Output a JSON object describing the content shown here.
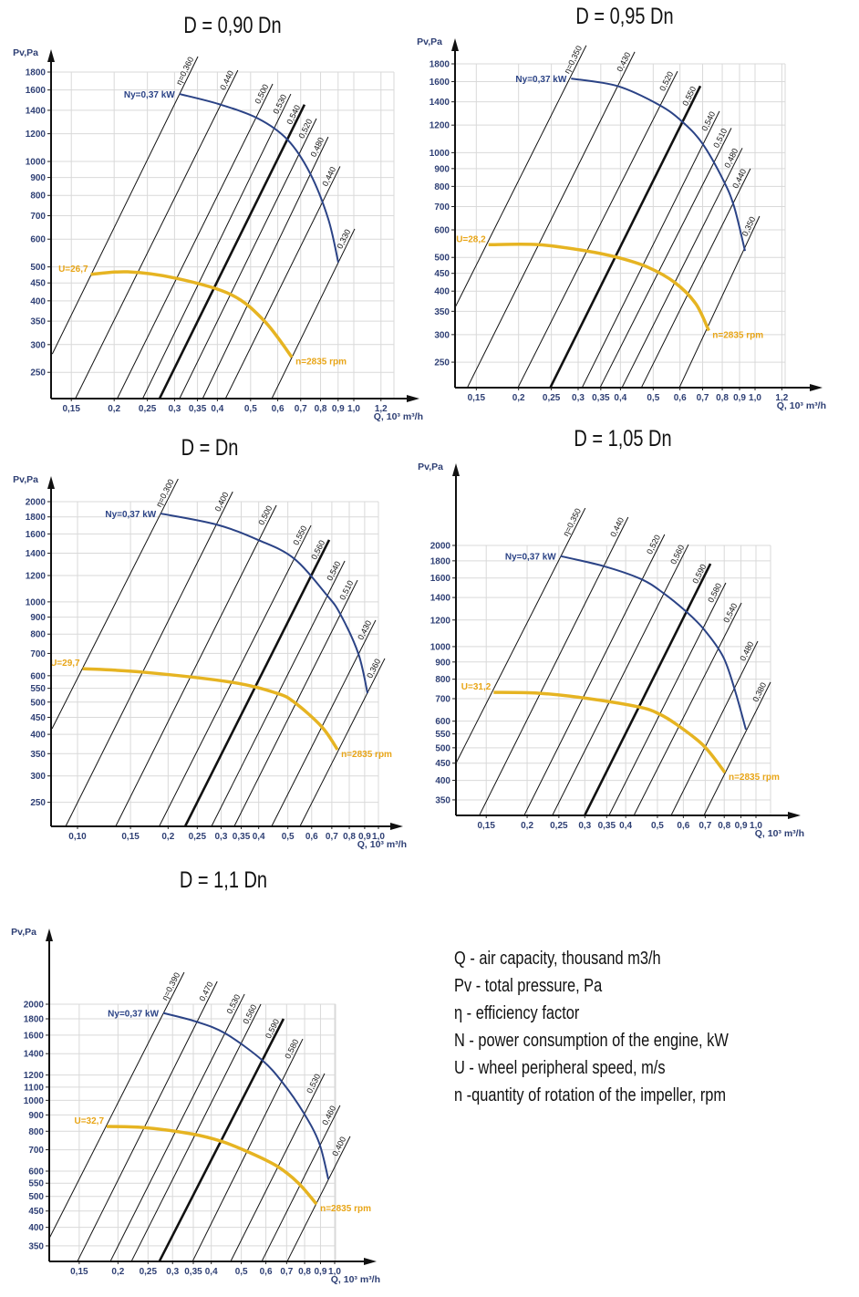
{
  "colors": {
    "power_curve": "#2b4386",
    "speed_curve": "#e6b422",
    "speed_label": "#e8a517",
    "axis_text": "#2e3f74",
    "grid": "#d9d9d9",
    "lines": "#111111"
  },
  "axes_scale": {
    "x": "log",
    "y": "log"
  },
  "chart_data": [
    {
      "type": "line",
      "title": "D = 0,90 Dn",
      "xlabel": "Q, 10³ m³/h",
      "ylabel": "Pv,Pa",
      "grid": true,
      "x_ticks": [
        "0,15",
        "0,2",
        "0,25",
        "0,3",
        "0,35",
        "0,4",
        "0,5",
        "0,6",
        "0,7",
        "0,8",
        "0,9",
        "1,0",
        "1,2"
      ],
      "y_ticks": [
        "1800",
        "1600",
        "1400",
        "1200",
        "1000",
        "900",
        "800",
        "700",
        "600",
        "500",
        "450",
        "400",
        "350",
        "300",
        "250"
      ],
      "efficiency_lines": [
        {
          "label": "η=0,360",
          "start": [
            0.132,
            282
          ],
          "end": [
            0.351,
            1993
          ]
        },
        {
          "label": "0,440",
          "start": [
            0.154,
            210
          ],
          "end": [
            0.459,
            1822
          ]
        },
        {
          "label": "0,500",
          "start": [
            0.204,
            210
          ],
          "end": [
            0.58,
            1665
          ]
        },
        {
          "label": "0,530",
          "start": [
            0.242,
            210
          ],
          "end": [
            0.655,
            1558
          ]
        },
        {
          "label": "0,540",
          "start": [
            0.271,
            210
          ],
          "end": [
            0.718,
            1453
          ],
          "highlight": true
        },
        {
          "label": "0,520",
          "start": [
            0.31,
            210
          ],
          "end": [
            0.778,
            1326
          ]
        },
        {
          "label": "0,480",
          "start": [
            0.362,
            210
          ],
          "end": [
            0.842,
            1175
          ]
        },
        {
          "label": "0,440",
          "start": [
            0.422,
            210
          ],
          "end": [
            0.912,
            968
          ]
        },
        {
          "label": "0,330",
          "start": [
            0.576,
            210
          ],
          "end": [
            1.006,
            642
          ]
        }
      ],
      "power_curve": {
        "label": "Ny=0,37 kW",
        "points": [
          [
            0.31,
            1558
          ],
          [
            0.404,
            1458
          ],
          [
            0.526,
            1326
          ],
          [
            0.64,
            1155
          ],
          [
            0.745,
            926
          ],
          [
            0.842,
            686
          ],
          [
            0.901,
            515
          ]
        ]
      },
      "speed_curve": {
        "label_start": "U=26,7",
        "label_end": "n=2835 rpm",
        "points": [
          [
            0.171,
            476
          ],
          [
            0.219,
            484
          ],
          [
            0.303,
            464
          ],
          [
            0.438,
            417
          ],
          [
            0.549,
            350
          ],
          [
            0.66,
            276
          ]
        ]
      }
    },
    {
      "type": "line",
      "title": "D = 0,95 Dn",
      "xlabel": "Q, 10³ m³/h",
      "ylabel": "Pv,Pa",
      "grid": true,
      "x_ticks": [
        "0,15",
        "0,2",
        "0,25",
        "0,3",
        "0,35",
        "0,4",
        "0,5",
        "0,6",
        "0,7",
        "0,8",
        "0,9",
        "1,0",
        "1,2"
      ],
      "y_ticks": [
        "1800",
        "1600",
        "1400",
        "1200",
        "1000",
        "900",
        "800",
        "700",
        "600",
        "500",
        "450",
        "400",
        "350",
        "300",
        "250"
      ],
      "efficiency_lines": [
        {
          "label": "η=0,350",
          "start": [
            0.13,
            360
          ],
          "end": [
            0.317,
            2033
          ]
        },
        {
          "label": "0,430",
          "start": [
            0.141,
            211
          ],
          "end": [
            0.441,
            1948
          ]
        },
        {
          "label": "0,520",
          "start": [
            0.199,
            211
          ],
          "end": [
            0.59,
            1714
          ]
        },
        {
          "label": "0,550",
          "start": [
            0.248,
            211
          ],
          "end": [
            0.689,
            1554
          ],
          "highlight": true
        },
        {
          "label": "0,540",
          "start": [
            0.308,
            211
          ],
          "end": [
            0.785,
            1316
          ]
        },
        {
          "label": "0,510",
          "start": [
            0.348,
            211
          ],
          "end": [
            0.851,
            1177
          ]
        },
        {
          "label": "0,480",
          "start": [
            0.404,
            211
          ],
          "end": [
            0.917,
            1031
          ]
        },
        {
          "label": "0,440",
          "start": [
            0.461,
            211
          ],
          "end": [
            0.969,
            900
          ]
        },
        {
          "label": "0,350",
          "start": [
            0.597,
            211
          ],
          "end": [
            1.031,
            657
          ]
        }
      ],
      "power_curve": {
        "label": "Ny=0,37 kW",
        "points": [
          [
            0.286,
            1633
          ],
          [
            0.392,
            1554
          ],
          [
            0.521,
            1371
          ],
          [
            0.608,
            1230
          ],
          [
            0.698,
            1064
          ],
          [
            0.805,
            835
          ],
          [
            0.867,
            700
          ],
          [
            0.934,
            522
          ]
        ]
      },
      "speed_curve": {
        "label_start": "U=28,2",
        "label_end": "n=2835 rpm",
        "points": [
          [
            0.163,
            544
          ],
          [
            0.229,
            544
          ],
          [
            0.317,
            522
          ],
          [
            0.392,
            500
          ],
          [
            0.481,
            469
          ],
          [
            0.58,
            423
          ],
          [
            0.668,
            368
          ],
          [
            0.73,
            308
          ]
        ]
      }
    },
    {
      "type": "line",
      "title": "D = Dn",
      "xlabel": "Q, 10³ m³/h",
      "ylabel": "Pv,Pa",
      "grid": true,
      "x_ticks": [
        "0,10",
        "0,15",
        "0,2",
        "0,25",
        "0,3",
        "0,35",
        "0,4",
        "0,5",
        "0,6",
        "0,7",
        "0,8",
        "0,9",
        "1,0"
      ],
      "y_ticks": [
        "2000",
        "1800",
        "1600",
        "1400",
        "1200",
        "1000",
        "900",
        "800",
        "700",
        "600",
        "550",
        "500",
        "450",
        "400",
        "350",
        "300",
        "250"
      ],
      "efficiency_lines": [
        {
          "label": "η=0,300",
          "start": [
            0.0823,
            416
          ],
          "end": [
            0.216,
            2341
          ]
        },
        {
          "label": "0,400",
          "start": [
            0.0914,
            212
          ],
          "end": [
            0.328,
            2142
          ]
        },
        {
          "label": "0,500",
          "start": [
            0.134,
            212
          ],
          "end": [
            0.458,
            1950
          ]
        },
        {
          "label": "0,550",
          "start": [
            0.187,
            212
          ],
          "end": [
            0.597,
            1697
          ]
        },
        {
          "label": "0,560",
          "start": [
            0.228,
            212
          ],
          "end": [
            0.686,
            1535
          ],
          "highlight": true
        },
        {
          "label": "0,540",
          "start": [
            0.279,
            212
          ],
          "end": [
            0.773,
            1327
          ]
        },
        {
          "label": "0,510",
          "start": [
            0.332,
            212
          ],
          "end": [
            0.852,
            1162
          ]
        },
        {
          "label": "0,430",
          "start": [
            0.442,
            212
          ],
          "end": [
            0.979,
            881
          ]
        },
        {
          "label": "0,360",
          "start": [
            0.549,
            212
          ],
          "end": [
            1.05,
            676
          ]
        }
      ],
      "power_curve": {
        "label": "Ny=0,37 kW",
        "points": [
          [
            0.189,
            1842
          ],
          [
            0.289,
            1708
          ],
          [
            0.398,
            1535
          ],
          [
            0.523,
            1352
          ],
          [
            0.672,
            1051
          ],
          [
            0.746,
            921
          ],
          [
            0.858,
            698
          ],
          [
            0.92,
            532
          ]
        ]
      },
      "speed_curve": {
        "label_start": "U=29,7",
        "label_end": "n=2835 rpm",
        "points": [
          [
            0.104,
            630
          ],
          [
            0.165,
            615
          ],
          [
            0.323,
            574
          ],
          [
            0.458,
            532
          ],
          [
            0.526,
            499
          ],
          [
            0.649,
            421
          ],
          [
            0.731,
            360
          ]
        ]
      }
    },
    {
      "type": "line",
      "title": "D = 1,05 Dn",
      "xlabel": "Q, 10³ m³/h",
      "ylabel": "Pv,Pa",
      "grid": true,
      "x_ticks": [
        "0,15",
        "0,2",
        "0,25",
        "0,3",
        "0,35",
        "0,4",
        "0,5",
        "0,6",
        "0,7",
        "0,8",
        "0,9",
        "1,0"
      ],
      "y_ticks": [
        "2000",
        "1800",
        "1600",
        "1400",
        "1200",
        "1000",
        "900",
        "800",
        "700",
        "600",
        "550",
        "500",
        "450",
        "400",
        "350"
      ],
      "efficiency_lines": [
        {
          "label": "η=0,350",
          "start": [
            0.12,
            441
          ],
          "end": [
            0.301,
            2583
          ]
        },
        {
          "label": "0,440",
          "start": [
            0.143,
            315
          ],
          "end": [
            0.407,
            2427
          ]
        },
        {
          "label": "0,520",
          "start": [
            0.196,
            315
          ],
          "end": [
            0.526,
            2156
          ]
        },
        {
          "label": "0,560",
          "start": [
            0.239,
            315
          ],
          "end": [
            0.622,
            2012
          ]
        },
        {
          "label": "0,590",
          "start": [
            0.3,
            315
          ],
          "end": [
            0.726,
            1764
          ],
          "highlight": true
        },
        {
          "label": "0,580",
          "start": [
            0.356,
            315
          ],
          "end": [
            0.809,
            1548
          ]
        },
        {
          "label": "0,540",
          "start": [
            0.424,
            315
          ],
          "end": [
            0.903,
            1349
          ]
        },
        {
          "label": "0,480",
          "start": [
            0.551,
            315
          ],
          "end": [
            1.013,
            1038
          ]
        },
        {
          "label": "0,380",
          "start": [
            0.694,
            315
          ],
          "end": [
            1.108,
            784
          ]
        }
      ],
      "power_curve": {
        "label": "Ny=0,37 kW",
        "points": [
          [
            0.253,
            1859
          ],
          [
            0.345,
            1732
          ],
          [
            0.446,
            1588
          ],
          [
            0.52,
            1446
          ],
          [
            0.61,
            1275
          ],
          [
            0.694,
            1125
          ],
          [
            0.794,
            933
          ],
          [
            0.863,
            740
          ],
          [
            0.932,
            566
          ]
        ]
      },
      "speed_curve": {
        "label_start": "U=31,2",
        "label_end": "n=2835 rpm",
        "points": [
          [
            0.158,
            731
          ],
          [
            0.216,
            727
          ],
          [
            0.297,
            704
          ],
          [
            0.437,
            662
          ],
          [
            0.507,
            630
          ],
          [
            0.576,
            584
          ],
          [
            0.694,
            506
          ],
          [
            0.804,
            422
          ]
        ]
      }
    },
    {
      "type": "line",
      "title": "D = 1,1 Dn",
      "xlabel": "Q, 10³ m³/h",
      "ylabel": "Pv,Pa",
      "grid": true,
      "x_ticks": [
        "0,15",
        "0,2",
        "0,25",
        "0,3",
        "0,35",
        "0,4",
        "0,5",
        "0,6",
        "0,7",
        "0,8",
        "0,9",
        "1,0"
      ],
      "y_ticks": [
        "2000",
        "1800",
        "1600",
        "1400",
        "1200",
        "1100",
        "1000",
        "900",
        "800",
        "700",
        "600",
        "550",
        "500",
        "450",
        "400",
        "350"
      ],
      "efficiency_lines": [
        {
          "label": "η=0,390",
          "start": [
            0.12,
            369
          ],
          "end": [
            0.327,
            2518
          ]
        },
        {
          "label": "0,470",
          "start": [
            0.148,
            313
          ],
          "end": [
            0.418,
            2358
          ]
        },
        {
          "label": "0,530",
          "start": [
            0.189,
            313
          ],
          "end": [
            0.512,
            2151
          ]
        },
        {
          "label": "0,560",
          "start": [
            0.221,
            313
          ],
          "end": [
            0.578,
            2000
          ]
        },
        {
          "label": "0,590",
          "start": [
            0.272,
            313
          ],
          "end": [
            0.684,
            1800
          ],
          "highlight": true
        },
        {
          "label": "0,580",
          "start": [
            0.348,
            313
          ],
          "end": [
            0.789,
            1557
          ]
        },
        {
          "label": "0,530",
          "start": [
            0.462,
            313
          ],
          "end": [
            0.928,
            1213
          ]
        },
        {
          "label": "0,460",
          "start": [
            0.582,
            313
          ],
          "end": [
            1.041,
            964
          ]
        },
        {
          "label": "0,400",
          "start": [
            0.703,
            313
          ],
          "end": [
            1.122,
            771
          ]
        }
      ],
      "power_curve": {
        "label": "Ny=0,37 kW",
        "points": [
          [
            0.28,
            1877
          ],
          [
            0.357,
            1765
          ],
          [
            0.444,
            1620
          ],
          [
            0.582,
            1339
          ],
          [
            0.68,
            1135
          ],
          [
            0.794,
            914
          ],
          [
            0.891,
            736
          ],
          [
            0.954,
            566
          ]
        ]
      },
      "speed_curve": {
        "label_start": "U=32,7",
        "label_end": "n=2835 rpm",
        "points": [
          [
            0.184,
            828
          ],
          [
            0.241,
            822
          ],
          [
            0.345,
            785
          ],
          [
            0.429,
            745
          ],
          [
            0.519,
            693
          ],
          [
            0.648,
            624
          ],
          [
            0.763,
            551
          ],
          [
            0.874,
            473
          ]
        ]
      }
    }
  ],
  "legend": [
    "Q - air capacity, thousand m3/h",
    "Pv - total pressure, Pa",
    "η - efficiency factor",
    "N - power consumption of the engine, kW",
    "U - wheel peripheral speed, m/s",
    "n -quantity of rotation of the impeller, rpm"
  ]
}
